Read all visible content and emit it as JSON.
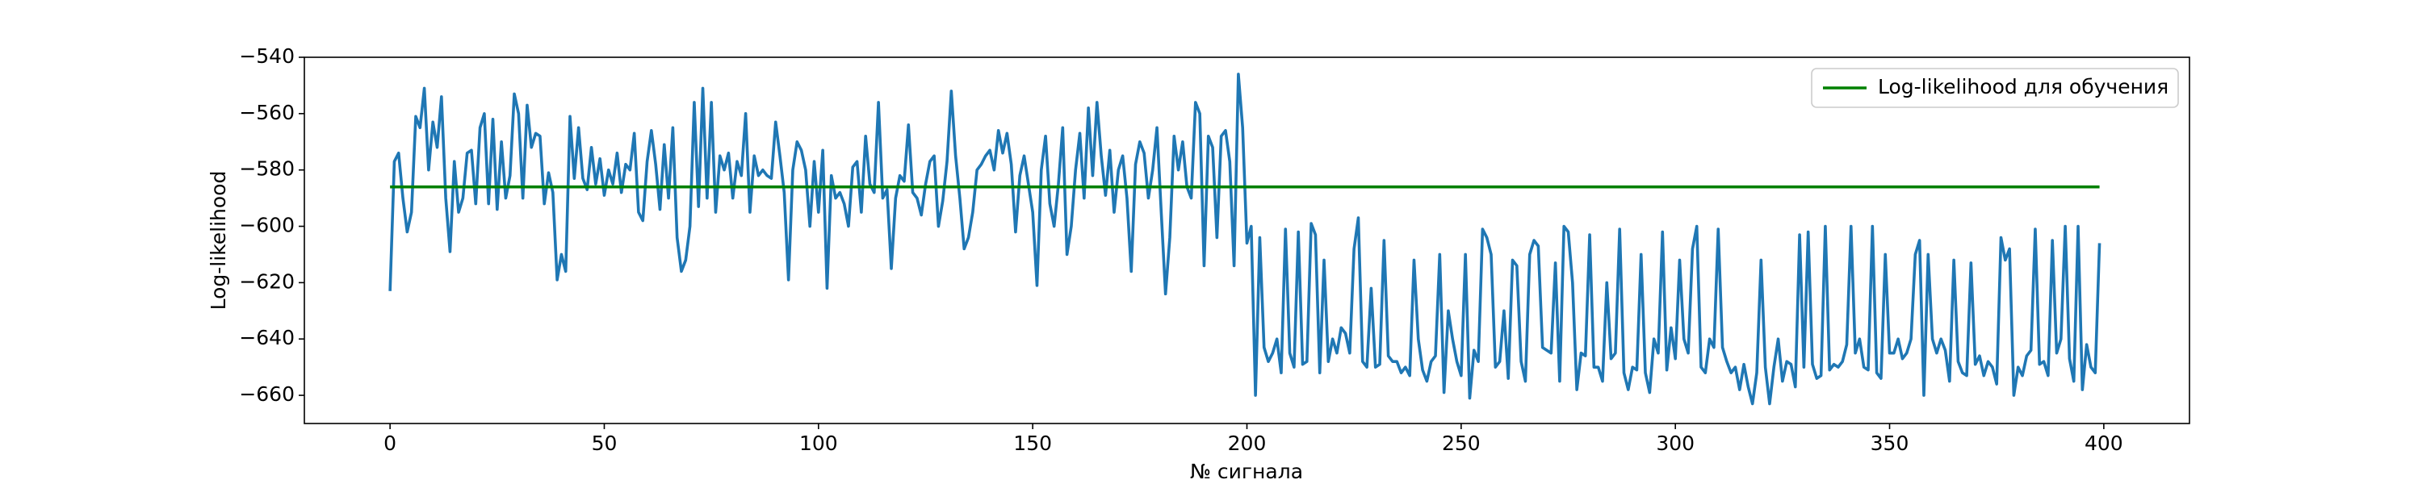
{
  "chart_data": {
    "type": "line",
    "xlabel": "№ сигнала",
    "ylabel": "Log-likelihood",
    "xlim": [
      -20,
      420
    ],
    "xticks": [
      0,
      50,
      100,
      150,
      200,
      250,
      300,
      350,
      400
    ],
    "ylim": [
      -670,
      -540
    ],
    "yticks": [
      {
        "value": -660,
        "label": "−660"
      },
      {
        "value": -640,
        "label": "−640"
      },
      {
        "value": -620,
        "label": "−620"
      },
      {
        "value": -600,
        "label": "−600"
      },
      {
        "value": -580,
        "label": "−580"
      },
      {
        "value": -560,
        "label": "−560"
      },
      {
        "value": -540,
        "label": "−540"
      }
    ],
    "legend": "upper right",
    "x": [
      0,
      1,
      2,
      3,
      4,
      5,
      6,
      7,
      8,
      9,
      10,
      11,
      12,
      13,
      14,
      15,
      16,
      17,
      18,
      19,
      20,
      21,
      22,
      23,
      24,
      25,
      26,
      27,
      28,
      29,
      30,
      31,
      32,
      33,
      34,
      35,
      36,
      37,
      38,
      39,
      40,
      41,
      42,
      43,
      44,
      45,
      46,
      47,
      48,
      49,
      50,
      51,
      52,
      53,
      54,
      55,
      56,
      57,
      58,
      59,
      60,
      61,
      62,
      63,
      64,
      65,
      66,
      67,
      68,
      69,
      70,
      71,
      72,
      73,
      74,
      75,
      76,
      77,
      78,
      79,
      80,
      81,
      82,
      83,
      84,
      85,
      86,
      87,
      88,
      89,
      90,
      91,
      92,
      93,
      94,
      95,
      96,
      97,
      98,
      99,
      100,
      101,
      102,
      103,
      104,
      105,
      106,
      107,
      108,
      109,
      110,
      111,
      112,
      113,
      114,
      115,
      116,
      117,
      118,
      119,
      120,
      121,
      122,
      123,
      124,
      125,
      126,
      127,
      128,
      129,
      130,
      131,
      132,
      133,
      134,
      135,
      136,
      137,
      138,
      139,
      140,
      141,
      142,
      143,
      144,
      145,
      146,
      147,
      148,
      149,
      150,
      151,
      152,
      153,
      154,
      155,
      156,
      157,
      158,
      159,
      160,
      161,
      162,
      163,
      164,
      165,
      166,
      167,
      168,
      169,
      170,
      171,
      172,
      173,
      174,
      175,
      176,
      177,
      178,
      179,
      180,
      181,
      182,
      183,
      184,
      185,
      186,
      187,
      188,
      189,
      190,
      191,
      192,
      193,
      194,
      195,
      196,
      197,
      198,
      199,
      200,
      201,
      202,
      203,
      204,
      205,
      206,
      207,
      208,
      209,
      210,
      211,
      212,
      213,
      214,
      215,
      216,
      217,
      218,
      219,
      220,
      221,
      222,
      223,
      224,
      225,
      226,
      227,
      228,
      229,
      230,
      231,
      232,
      233,
      234,
      235,
      236,
      237,
      238,
      239,
      240,
      241,
      242,
      243,
      244,
      245,
      246,
      247,
      248,
      249,
      250,
      251,
      252,
      253,
      254,
      255,
      256,
      257,
      258,
      259,
      260,
      261,
      262,
      263,
      264,
      265,
      266,
      267,
      268,
      269,
      270,
      271,
      272,
      273,
      274,
      275,
      276,
      277,
      278,
      279,
      280,
      281,
      282,
      283,
      284,
      285,
      286,
      287,
      288,
      289,
      290,
      291,
      292,
      293,
      294,
      295,
      296,
      297,
      298,
      299,
      300,
      301,
      302,
      303,
      304,
      305,
      306,
      307,
      308,
      309,
      310,
      311,
      312,
      313,
      314,
      315,
      316,
      317,
      318,
      319,
      320,
      321,
      322,
      323,
      324,
      325,
      326,
      327,
      328,
      329,
      330,
      331,
      332,
      333,
      334,
      335,
      336,
      337,
      338,
      339,
      340,
      341,
      342,
      343,
      344,
      345,
      346,
      347,
      348,
      349,
      350,
      351,
      352,
      353,
      354,
      355,
      356,
      357,
      358,
      359,
      360,
      361,
      362,
      363,
      364,
      365,
      366,
      367,
      368,
      369,
      370,
      371,
      372,
      373,
      374,
      375,
      376,
      377,
      378,
      379,
      380,
      381,
      382,
      383,
      384,
      385,
      386,
      387,
      388,
      389,
      390,
      391,
      392,
      393,
      394,
      395,
      396,
      397,
      398,
      399
    ],
    "series": [
      {
        "color": "#1f77b4",
        "values": [
          -623,
          -577,
          -574,
          -590,
          -602,
          -595,
          -561,
          -565,
          -551,
          -580,
          -563,
          -572,
          -554,
          -590,
          -609,
          -577,
          -595,
          -590,
          -574,
          -573,
          -592,
          -565,
          -560,
          -592,
          -562,
          -594,
          -570,
          -590,
          -582,
          -553,
          -560,
          -590,
          -557,
          -572,
          -567,
          -568,
          -592,
          -581,
          -588,
          -619,
          -610,
          -616,
          -561,
          -583,
          -565,
          -583,
          -587,
          -572,
          -585,
          -576,
          -589,
          -580,
          -585,
          -574,
          -588,
          -578,
          -580,
          -567,
          -595,
          -598,
          -577,
          -566,
          -578,
          -594,
          -571,
          -590,
          -565,
          -604,
          -616,
          -612,
          -600,
          -556,
          -593,
          -551,
          -590,
          -556,
          -595,
          -575,
          -580,
          -574,
          -590,
          -577,
          -582,
          -560,
          -595,
          -575,
          -582,
          -580,
          -582,
          -583,
          -563,
          -575,
          -588,
          -619,
          -580,
          -570,
          -573,
          -580,
          -600,
          -577,
          -595,
          -573,
          -622,
          -582,
          -590,
          -588,
          -592,
          -600,
          -579,
          -577,
          -595,
          -568,
          -585,
          -588,
          -556,
          -590,
          -587,
          -615,
          -590,
          -582,
          -584,
          -564,
          -588,
          -590,
          -596,
          -585,
          -577,
          -575,
          -600,
          -591,
          -577,
          -552,
          -575,
          -590,
          -608,
          -604,
          -595,
          -580,
          -578,
          -575,
          -573,
          -580,
          -566,
          -574,
          -567,
          -578,
          -602,
          -582,
          -575,
          -585,
          -595,
          -621,
          -580,
          -568,
          -592,
          -600,
          -585,
          -565,
          -610,
          -600,
          -580,
          -567,
          -590,
          -558,
          -582,
          -556,
          -575,
          -589,
          -573,
          -595,
          -580,
          -575,
          -590,
          -616,
          -578,
          -570,
          -574,
          -590,
          -580,
          -565,
          -595,
          -624,
          -604,
          -568,
          -580,
          -570,
          -586,
          -590,
          -556,
          -560,
          -614,
          -568,
          -572,
          -604,
          -568,
          -566,
          -577,
          -614,
          -546,
          -565,
          -606,
          -600,
          -660,
          -604,
          -643,
          -648,
          -645,
          -640,
          -652,
          -601,
          -645,
          -650,
          -602,
          -649,
          -648,
          -599,
          -603,
          -652,
          -612,
          -648,
          -640,
          -645,
          -636,
          -638,
          -645,
          -608,
          -597,
          -648,
          -650,
          -622,
          -650,
          -649,
          -605,
          -646,
          -648,
          -648,
          -652,
          -650,
          -653,
          -612,
          -640,
          -651,
          -655,
          -648,
          -646,
          -610,
          -659,
          -630,
          -640,
          -648,
          -653,
          -610,
          -661,
          -644,
          -648,
          -601,
          -604,
          -610,
          -650,
          -648,
          -630,
          -654,
          -612,
          -614,
          -648,
          -655,
          -610,
          -605,
          -607,
          -643,
          -644,
          -645,
          -613,
          -655,
          -600,
          -602,
          -620,
          -658,
          -645,
          -646,
          -603,
          -650,
          -650,
          -655,
          -620,
          -647,
          -645,
          -601,
          -652,
          -658,
          -650,
          -651,
          -610,
          -652,
          -659,
          -640,
          -645,
          -602,
          -651,
          -636,
          -647,
          -612,
          -640,
          -645,
          -608,
          -600,
          -650,
          -652,
          -640,
          -643,
          -601,
          -643,
          -648,
          -652,
          -650,
          -658,
          -649,
          -657,
          -663,
          -652,
          -612,
          -650,
          -663,
          -650,
          -640,
          -655,
          -648,
          -649,
          -657,
          -603,
          -650,
          -602,
          -649,
          -654,
          -653,
          -600,
          -651,
          -649,
          -650,
          -648,
          -642,
          -600,
          -645,
          -640,
          -650,
          -651,
          -600,
          -652,
          -654,
          -610,
          -645,
          -645,
          -640,
          -647,
          -645,
          -640,
          -610,
          -605,
          -660,
          -610,
          -640,
          -645,
          -640,
          -644,
          -655,
          -612,
          -648,
          -652,
          -653,
          -613,
          -649,
          -646,
          -653,
          -648,
          -650,
          -656,
          -604,
          -612,
          -608,
          -660,
          -650,
          -653,
          -646,
          -644,
          -601,
          -649,
          -648,
          -653,
          -605,
          -645,
          -640,
          -600,
          -647,
          -655,
          -600,
          -658,
          -642,
          -650,
          -652,
          -606
        ]
      },
      {
        "name": "Log-likelihood для обучения",
        "color": "#008000",
        "x": [
          0,
          399
        ],
        "values": [
          -586,
          -586
        ]
      }
    ]
  }
}
